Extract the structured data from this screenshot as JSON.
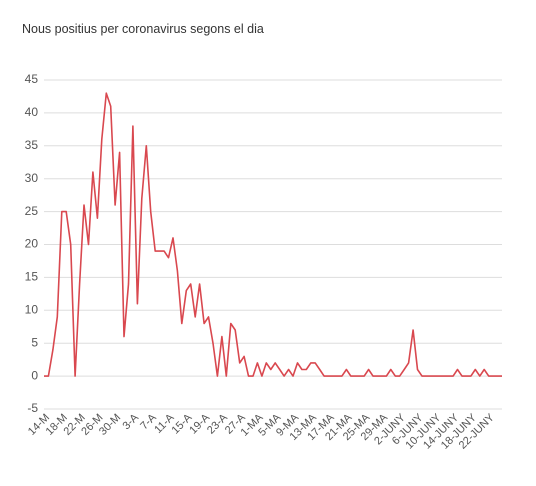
{
  "chart_data": {
    "type": "line",
    "title": "Nous positius per coronavirus segons el dia",
    "xlabel": "",
    "ylabel": "",
    "ylim": [
      -5,
      45
    ],
    "yticks": [
      -5,
      0,
      5,
      10,
      15,
      20,
      25,
      30,
      35,
      40,
      45
    ],
    "grid": true,
    "color": "#d9484f",
    "x_tick_labels": [
      "14-M",
      "18-M",
      "22-M",
      "26-M",
      "30-M",
      "3-A",
      "7-A",
      "11-A",
      "15-A",
      "19-A",
      "23-A",
      "27-A",
      "1-MA",
      "5-MA",
      "9-MA",
      "13-MA",
      "17-MA",
      "21-MA",
      "25-MA",
      "29-MA",
      "2-JUNY",
      "6-JUNY",
      "10-JUNY",
      "14-JUNY",
      "18-JUNY",
      "22-JUNY"
    ],
    "x_tick_every": 4,
    "series": [
      {
        "values": [
          0,
          0,
          4,
          9,
          25,
          25,
          20,
          0,
          14,
          26,
          20,
          31,
          24,
          36,
          43,
          41,
          26,
          34,
          6,
          14,
          38,
          11,
          27,
          35,
          25,
          19,
          19,
          19,
          18,
          21,
          16,
          8,
          13,
          14,
          9,
          14,
          8,
          9,
          5,
          0,
          6,
          0,
          8,
          7,
          2,
          3,
          0,
          0,
          2,
          0,
          2,
          1,
          2,
          1,
          0,
          1,
          0,
          2,
          1,
          1,
          2,
          2,
          1,
          0,
          0,
          0,
          0,
          0,
          1,
          0,
          0,
          0,
          0,
          1,
          0,
          0,
          0,
          0,
          1,
          0,
          0,
          1,
          2,
          7,
          1,
          0,
          0,
          0,
          0,
          0,
          0,
          0,
          0,
          1,
          0,
          0,
          0,
          1,
          0,
          1,
          0,
          0,
          0,
          0
        ]
      }
    ]
  }
}
